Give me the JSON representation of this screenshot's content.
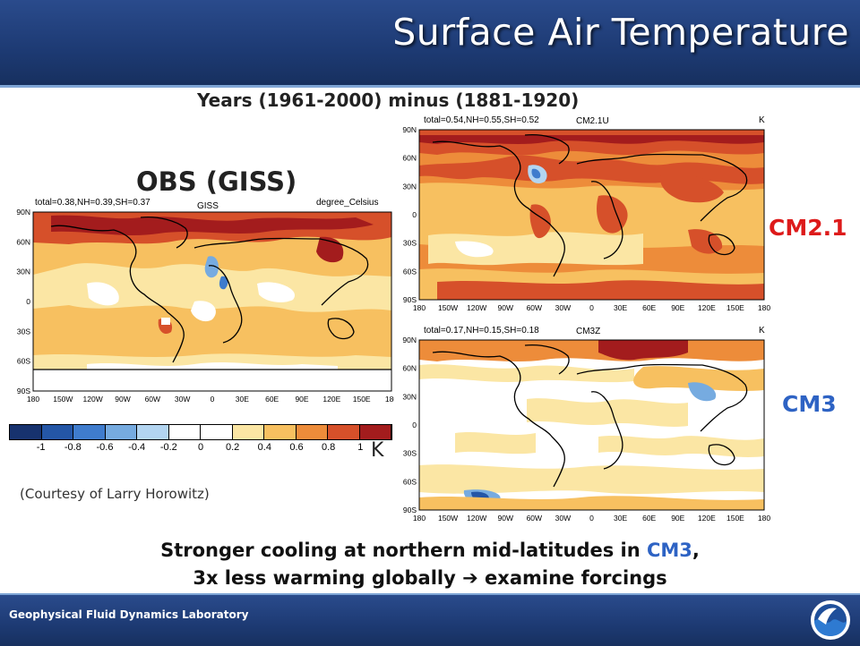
{
  "header": {
    "title": "Surface Air Temperature"
  },
  "subtitle": "Years (1961-2000) minus (1881-1920)",
  "obs": {
    "label": "OBS (GISS)",
    "stats": "total=0.38,NH=0.39,SH=0.37",
    "dataset": "GISS",
    "units": "degree_Celsius"
  },
  "cm21": {
    "label": "CM2.1",
    "stats": "total=0.54,NH=0.55,SH=0.52",
    "model": "CM2.1U",
    "units": "K"
  },
  "cm3": {
    "label": "CM3",
    "stats": "total=0.17,NH=0.15,SH=0.18",
    "model": "CM3Z",
    "units": "K"
  },
  "colorbar": {
    "ticks": [
      "-1",
      "-0.8",
      "-0.6",
      "-0.4",
      "-0.2",
      "0",
      "0.2",
      "0.4",
      "0.6",
      "0.8",
      "1"
    ],
    "colors": [
      "#17326e",
      "#2456a6",
      "#3f7ccd",
      "#76abe0",
      "#b3d5f1",
      "#ffffff",
      "#ffffff",
      "#fbe6a4",
      "#f7c060",
      "#ed8c3a",
      "#d6502a",
      "#a31c1d"
    ],
    "unit_label": "K"
  },
  "latitudes": [
    "90N",
    "60N",
    "30N",
    "0",
    "30S",
    "60S",
    "90S"
  ],
  "longitudes": [
    "180",
    "150W",
    "120W",
    "90W",
    "60W",
    "30W",
    "0",
    "30E",
    "60E",
    "90E",
    "120E",
    "150E",
    "180"
  ],
  "courtesy": "(Courtesy of Larry Horowitz)",
  "conclusion": {
    "line1_prefix": "Stronger cooling at northern mid-latitudes in ",
    "line1_model": "CM3",
    "line1_suffix": ",",
    "line2_prefix": "3x less warming globally ",
    "line2_arrow": "➔",
    "line2_suffix": " examine forcings"
  },
  "footer": {
    "lab": "Geophysical Fluid Dynamics Laboratory"
  }
}
